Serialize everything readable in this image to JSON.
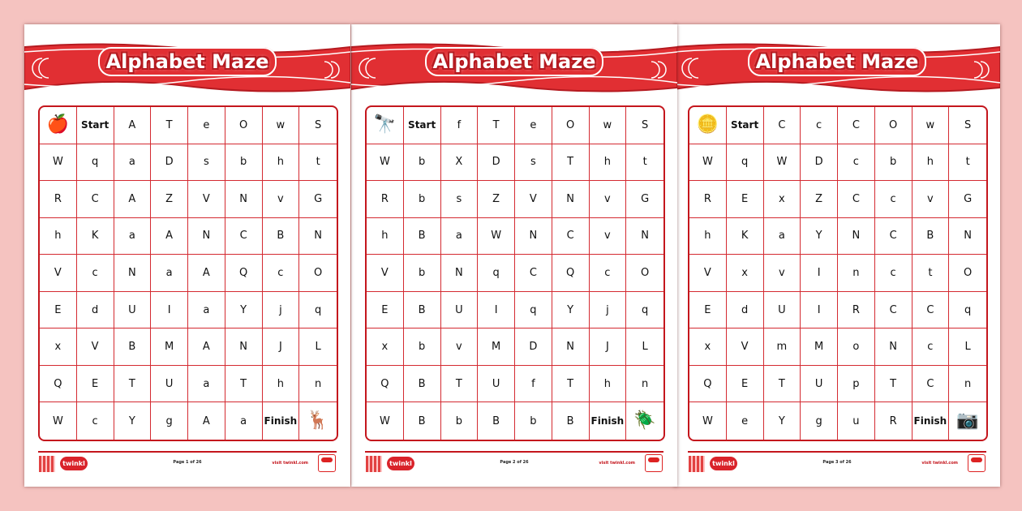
{
  "colors": {
    "background": "#f5c3c0",
    "accent": "#c4161d",
    "banner": "#e12f33"
  },
  "pages": [
    {
      "title": "Alphabet Maze",
      "start_icon": "apple-icon",
      "finish_icon": "oryx-icon",
      "page_label": "Page 1 of 26",
      "visit": "visit twinkl.com",
      "logo": "twinkl",
      "rows": [
        [
          "",
          "Start",
          "A",
          "T",
          "e",
          "O",
          "w",
          "S"
        ],
        [
          "W",
          "q",
          "a",
          "D",
          "s",
          "b",
          "h",
          "t"
        ],
        [
          "R",
          "C",
          "A",
          "Z",
          "V",
          "N",
          "v",
          "G"
        ],
        [
          "h",
          "K",
          "a",
          "A",
          "N",
          "C",
          "B",
          "N"
        ],
        [
          "V",
          "c",
          "N",
          "a",
          "A",
          "Q",
          "c",
          "O"
        ],
        [
          "E",
          "d",
          "U",
          "I",
          "a",
          "Y",
          "j",
          "q"
        ],
        [
          "x",
          "V",
          "B",
          "M",
          "A",
          "N",
          "J",
          "L"
        ],
        [
          "Q",
          "E",
          "T",
          "U",
          "a",
          "T",
          "h",
          "n"
        ],
        [
          "W",
          "c",
          "Y",
          "g",
          "A",
          "a",
          "Finish",
          ""
        ]
      ]
    },
    {
      "title": "Alphabet Maze",
      "start_icon": "binoculars-icon",
      "finish_icon": "beetle-icon",
      "page_label": "Page 2 of 26",
      "visit": "visit twinkl.com",
      "logo": "twinkl",
      "rows": [
        [
          "",
          "Start",
          "f",
          "T",
          "e",
          "O",
          "w",
          "S"
        ],
        [
          "W",
          "b",
          "X",
          "D",
          "s",
          "T",
          "h",
          "t"
        ],
        [
          "R",
          "b",
          "s",
          "Z",
          "V",
          "N",
          "v",
          "G"
        ],
        [
          "h",
          "B",
          "a",
          "W",
          "N",
          "C",
          "v",
          "N"
        ],
        [
          "V",
          "b",
          "N",
          "q",
          "C",
          "Q",
          "c",
          "O"
        ],
        [
          "E",
          "B",
          "U",
          "I",
          "q",
          "Y",
          "j",
          "q"
        ],
        [
          "x",
          "b",
          "v",
          "M",
          "D",
          "N",
          "J",
          "L"
        ],
        [
          "Q",
          "B",
          "T",
          "U",
          "f",
          "T",
          "h",
          "n"
        ],
        [
          "W",
          "B",
          "b",
          "B",
          "b",
          "B",
          "Finish",
          ""
        ]
      ]
    },
    {
      "title": "Alphabet Maze",
      "start_icon": "coins-icon",
      "finish_icon": "camera-icon",
      "page_label": "Page 3 of 26",
      "visit": "visit twinkl.com",
      "logo": "twinkl",
      "rows": [
        [
          "",
          "Start",
          "C",
          "c",
          "C",
          "O",
          "w",
          "S"
        ],
        [
          "W",
          "q",
          "W",
          "D",
          "c",
          "b",
          "h",
          "t"
        ],
        [
          "R",
          "E",
          "x",
          "Z",
          "C",
          "c",
          "v",
          "G"
        ],
        [
          "h",
          "K",
          "a",
          "Y",
          "N",
          "C",
          "B",
          "N"
        ],
        [
          "V",
          "x",
          "v",
          "I",
          "n",
          "c",
          "t",
          "O"
        ],
        [
          "E",
          "d",
          "U",
          "I",
          "R",
          "C",
          "C",
          "q"
        ],
        [
          "x",
          "V",
          "m",
          "M",
          "o",
          "N",
          "c",
          "L"
        ],
        [
          "Q",
          "E",
          "T",
          "U",
          "p",
          "T",
          "C",
          "n"
        ],
        [
          "W",
          "e",
          "Y",
          "g",
          "u",
          "R",
          "Finish",
          ""
        ]
      ]
    }
  ]
}
